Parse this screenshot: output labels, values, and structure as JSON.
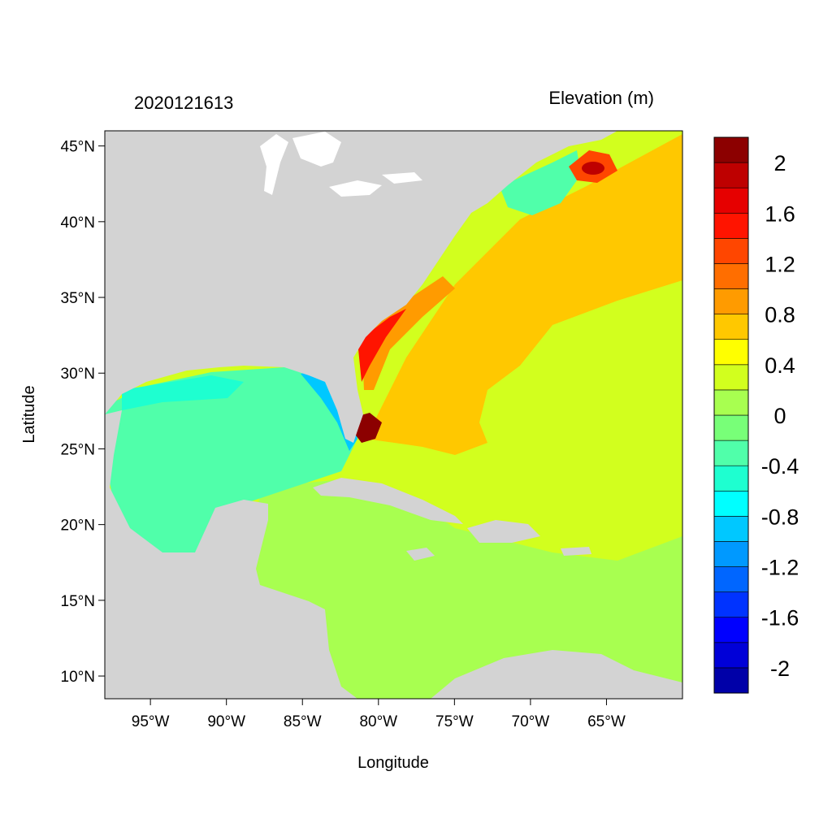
{
  "header": {
    "left_label": "2020121613",
    "right_label": "Elevation (m)"
  },
  "axes": {
    "xlabel": "Longitude",
    "ylabel": "Latitude",
    "lon_range": [
      -98,
      -60
    ],
    "lat_range": [
      8.5,
      46
    ],
    "x_ticks": [
      {
        "value": -95,
        "label": "95°W"
      },
      {
        "value": -90,
        "label": "90°W"
      },
      {
        "value": -85,
        "label": "85°W"
      },
      {
        "value": -80,
        "label": "80°W"
      },
      {
        "value": -75,
        "label": "75°W"
      },
      {
        "value": -70,
        "label": "70°W"
      },
      {
        "value": -65,
        "label": "65°W"
      }
    ],
    "y_ticks": [
      {
        "value": 45,
        "label": "45°N"
      },
      {
        "value": 40,
        "label": "40°N"
      },
      {
        "value": 35,
        "label": "35°N"
      },
      {
        "value": 30,
        "label": "30°N"
      },
      {
        "value": 25,
        "label": "25°N"
      },
      {
        "value": 20,
        "label": "20°N"
      },
      {
        "value": 15,
        "label": "15°N"
      },
      {
        "value": 10,
        "label": "10°N"
      }
    ]
  },
  "colorbar": {
    "title": "Elevation (m)",
    "colors": [
      "#0000a8",
      "#0000d8",
      "#0000ff",
      "#0033ff",
      "#0066ff",
      "#0099ff",
      "#00c8ff",
      "#00ffff",
      "#1effd0",
      "#50ffaa",
      "#78ff78",
      "#a8ff50",
      "#d2ff1e",
      "#ffff00",
      "#ffc800",
      "#ff9b00",
      "#ff6e00",
      "#ff4600",
      "#ff1400",
      "#e60000",
      "#be0000",
      "#8c0000"
    ],
    "labels": [
      {
        "value": 2,
        "label": "2"
      },
      {
        "value": 1.6,
        "label": "1.6"
      },
      {
        "value": 1.2,
        "label": "1.2"
      },
      {
        "value": 0.8,
        "label": "0.8"
      },
      {
        "value": 0.4,
        "label": "0.4"
      },
      {
        "value": 0,
        "label": "0"
      },
      {
        "value": -0.4,
        "label": "-0.4"
      },
      {
        "value": -0.8,
        "label": "-0.8"
      },
      {
        "value": -1.2,
        "label": "-1.2"
      },
      {
        "value": -1.6,
        "label": "-1.6"
      },
      {
        "value": -2,
        "label": "-2"
      }
    ]
  },
  "map_colors": {
    "land": "#d3d3d3",
    "lakes": "#ffffff"
  }
}
